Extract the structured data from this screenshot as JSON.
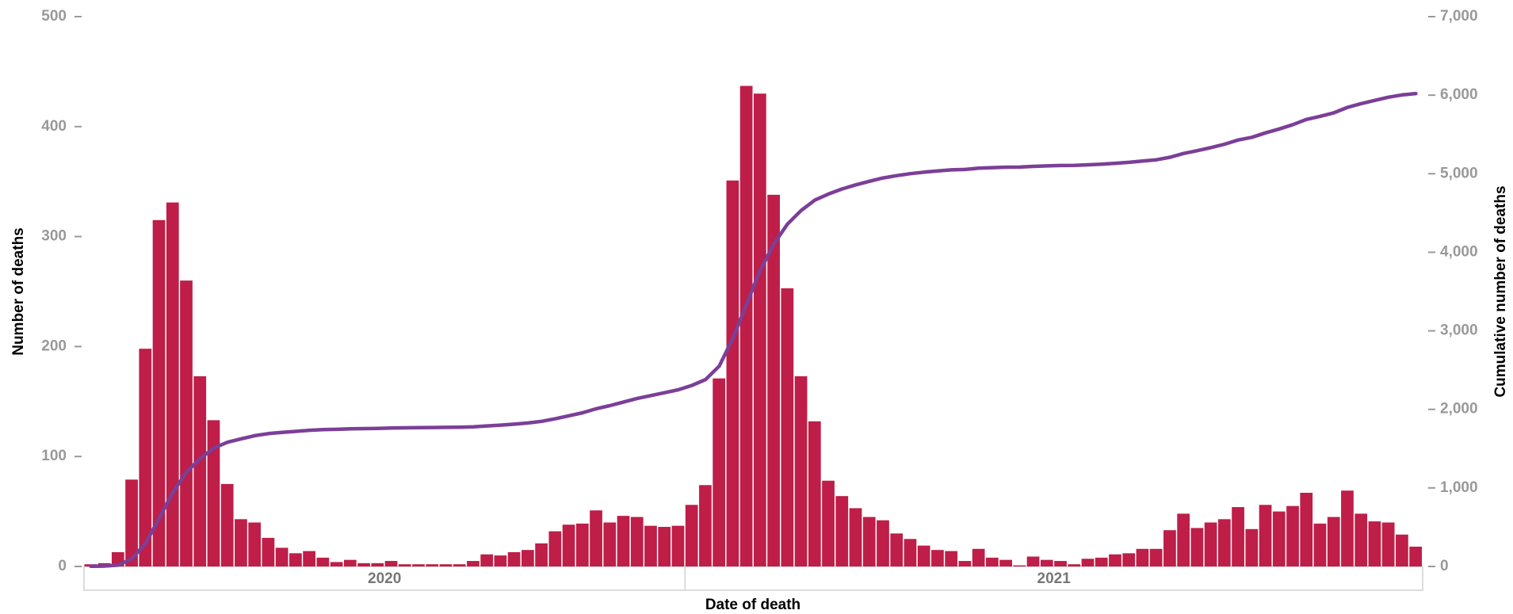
{
  "chart_data": {
    "type": "bar",
    "x_label": "Date of death",
    "y_label": "Number of deaths",
    "y2_label": "Cumulative number of deaths",
    "categories": [
      null,
      null,
      null,
      null,
      null,
      null,
      null,
      null,
      null,
      null,
      null,
      null,
      null,
      null,
      null,
      null,
      null,
      null,
      null,
      null,
      null,
      null,
      null,
      null,
      null,
      null,
      null,
      null,
      null,
      null,
      null,
      null,
      null,
      null,
      null,
      null,
      null,
      null,
      null,
      null,
      null,
      null,
      null,
      null,
      null,
      null,
      null,
      null,
      null,
      null,
      null,
      null,
      null,
      null,
      null,
      null,
      null,
      null,
      null,
      null,
      null,
      null,
      null,
      null,
      null,
      null,
      null,
      null,
      null,
      null,
      null,
      null,
      null,
      null,
      null,
      null,
      null,
      null,
      null,
      null,
      null,
      null,
      null,
      null,
      null,
      null,
      null,
      null,
      null,
      null,
      null,
      null,
      null,
      null,
      null,
      null,
      null,
      null
    ],
    "groups": [
      {
        "label": "2020",
        "count": 44
      },
      {
        "label": "2021",
        "count": 54
      }
    ],
    "series": [
      {
        "type": "bar",
        "color": "#be1e48",
        "values": [
          2,
          3,
          13,
          79,
          198,
          315,
          331,
          260,
          173,
          133,
          75,
          43,
          40,
          26,
          17,
          12,
          14,
          8,
          4,
          6,
          3,
          3,
          5,
          2,
          2,
          2,
          2,
          2,
          5,
          11,
          10,
          13,
          15,
          21,
          32,
          38,
          39,
          51,
          40,
          46,
          45,
          37,
          36,
          37,
          56,
          74,
          171,
          351,
          437,
          430,
          338,
          253,
          173,
          132,
          78,
          64,
          53,
          45,
          42,
          30,
          25,
          19,
          15,
          14,
          5,
          16,
          8,
          6,
          1,
          9,
          6,
          5,
          2,
          7,
          8,
          11,
          12,
          16,
          16,
          33,
          48,
          35,
          40,
          43,
          54,
          34,
          56,
          50,
          55,
          67,
          39,
          45,
          69,
          48,
          41,
          40,
          29,
          18
        ]
      },
      {
        "type": "line",
        "axis": "y2",
        "color": "#7b3f98",
        "values": [
          2,
          5,
          18,
          97,
          295,
          610,
          941,
          1201,
          1374,
          1507,
          1582,
          1625,
          1665,
          1691,
          1708,
          1720,
          1734,
          1742,
          1746,
          1752,
          1755,
          1758,
          1763,
          1765,
          1767,
          1769,
          1771,
          1773,
          1778,
          1789,
          1799,
          1812,
          1827,
          1848,
          1880,
          1918,
          1957,
          2008,
          2048,
          2094,
          2139,
          2176,
          2212,
          2249,
          2305,
          2379,
          2550,
          2901,
          3338,
          3768,
          4106,
          4359,
          4532,
          4664,
          4742,
          4806,
          4859,
          4904,
          4946,
          4976,
          5001,
          5020,
          5035,
          5049,
          5054,
          5070,
          5078,
          5084,
          5085,
          5094,
          5100,
          5105,
          5107,
          5114,
          5122,
          5133,
          5145,
          5161,
          5177,
          5210,
          5258,
          5293,
          5333,
          5376,
          5430,
          5464,
          5520,
          5570,
          5625,
          5692,
          5731,
          5776,
          5845,
          5893,
          5934,
          5974,
          6003,
          6021
        ]
      }
    ],
    "ylim": [
      0,
      500
    ],
    "yticks": [
      0,
      100,
      200,
      300,
      400,
      500
    ],
    "y2lim": [
      0,
      7000
    ],
    "y2ticks": [
      0,
      {
        "value": 1000,
        "label": "1,000"
      },
      {
        "value": 2000,
        "label": "2,000"
      },
      {
        "value": 3000,
        "label": "3,000"
      },
      {
        "value": 4000,
        "label": "4,000"
      },
      {
        "value": 5000,
        "label": "5,000"
      },
      {
        "value": 6000,
        "label": "6,000"
      },
      {
        "value": 7000,
        "label": "7,000"
      }
    ],
    "grid": false
  }
}
